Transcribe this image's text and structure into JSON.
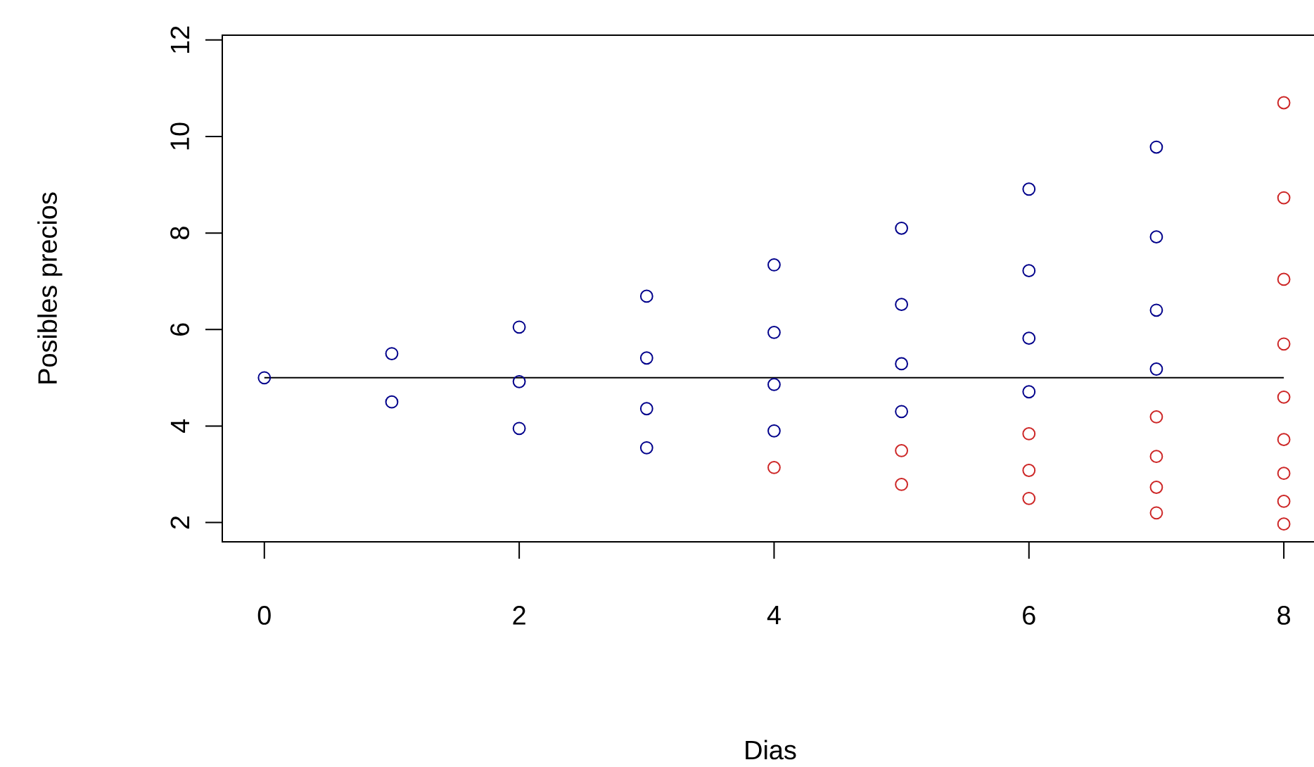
{
  "chart_data": {
    "type": "scatter",
    "xlabel": "Dias",
    "ylabel": "Posibles precios",
    "xlim": [
      -0.33,
      8.27
    ],
    "ylim": [
      1.6,
      12.1
    ],
    "xticks": [
      0,
      2,
      4,
      6,
      8
    ],
    "yticks": [
      2,
      4,
      6,
      8,
      10,
      12
    ],
    "grid": false,
    "marker": "circle",
    "series": [
      {
        "color": "#00008b",
        "x": [
          0,
          1,
          1,
          2,
          2,
          2,
          3,
          3,
          3,
          3,
          4,
          4,
          4,
          4,
          5,
          5,
          5,
          5,
          6,
          6,
          6,
          6,
          7,
          7,
          7,
          7
        ],
        "values": [
          5.0,
          5.5,
          4.5,
          6.05,
          4.92,
          3.95,
          6.69,
          5.41,
          4.36,
          3.55,
          7.34,
          5.94,
          4.86,
          3.9,
          8.1,
          6.52,
          5.29,
          4.3,
          8.91,
          7.22,
          5.82,
          4.71,
          9.78,
          7.92,
          6.4,
          5.18
        ]
      },
      {
        "color": "#cd2626",
        "x": [
          4,
          5,
          5,
          6,
          6,
          6,
          7,
          7,
          7,
          7,
          8,
          8,
          8,
          8,
          8,
          8,
          8,
          8,
          8
        ],
        "values": [
          3.14,
          3.49,
          2.79,
          3.84,
          3.08,
          2.5,
          4.19,
          3.37,
          2.73,
          2.2,
          10.7,
          8.73,
          7.04,
          5.7,
          4.6,
          3.72,
          3.02,
          2.44,
          1.97
        ]
      },
      {
        "type": "line",
        "color": "#000000",
        "marker": "none",
        "x": [
          0,
          8
        ],
        "values": [
          5,
          5
        ]
      }
    ]
  }
}
